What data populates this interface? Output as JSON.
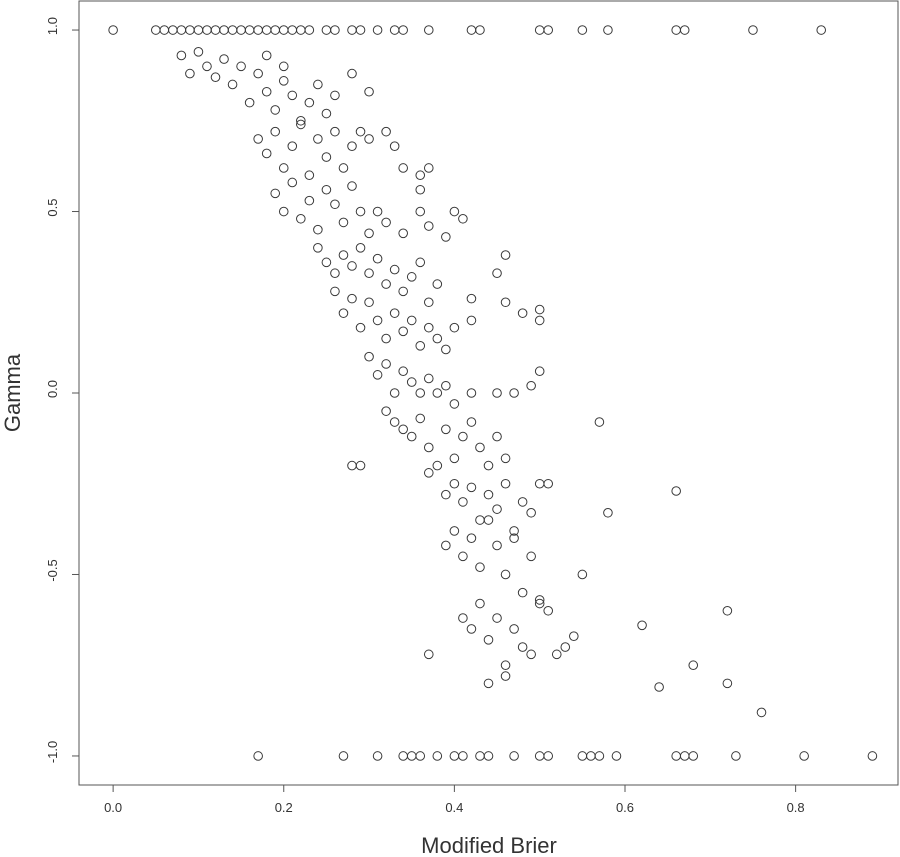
{
  "chart_data": {
    "type": "scatter",
    "title": "",
    "xlabel": "Modified Brier",
    "ylabel": "Gamma",
    "xlim": [
      -0.04,
      0.92
    ],
    "ylim": [
      -1.08,
      1.08
    ],
    "xticks": [
      0.0,
      0.2,
      0.4,
      0.6,
      0.8
    ],
    "xtick_labels": [
      "0.0",
      "0.2",
      "0.4",
      "0.6",
      "0.8"
    ],
    "yticks": [
      1.0,
      0.5,
      0.0,
      -0.5,
      -1.0
    ],
    "ytick_labels": [
      "1.0",
      "0.5",
      "0.0",
      "-0.5",
      "-1.0"
    ],
    "grid": false,
    "marker": "open circle",
    "series": [
      {
        "x": [
          0.0,
          0.05,
          0.06,
          0.07,
          0.08,
          0.09,
          0.1,
          0.11,
          0.12,
          0.13,
          0.14,
          0.15,
          0.16,
          0.17,
          0.18,
          0.19,
          0.2,
          0.21,
          0.22,
          0.23,
          0.25,
          0.26,
          0.28,
          0.29,
          0.31,
          0.33,
          0.34,
          0.37,
          0.42,
          0.43,
          0.5,
          0.51,
          0.55,
          0.58,
          0.66,
          0.67,
          0.75,
          0.83,
          0.08,
          0.09,
          0.1,
          0.11,
          0.12,
          0.13,
          0.14,
          0.15,
          0.16,
          0.17,
          0.18,
          0.18,
          0.19,
          0.2,
          0.2,
          0.21,
          0.22,
          0.23,
          0.24,
          0.25,
          0.26,
          0.28,
          0.3,
          0.17,
          0.18,
          0.19,
          0.2,
          0.21,
          0.22,
          0.23,
          0.24,
          0.25,
          0.26,
          0.27,
          0.28,
          0.29,
          0.3,
          0.32,
          0.33,
          0.34,
          0.36,
          0.36,
          0.37,
          0.19,
          0.2,
          0.21,
          0.22,
          0.23,
          0.24,
          0.25,
          0.26,
          0.27,
          0.28,
          0.29,
          0.3,
          0.31,
          0.32,
          0.34,
          0.36,
          0.37,
          0.39,
          0.4,
          0.41,
          0.24,
          0.25,
          0.26,
          0.27,
          0.28,
          0.29,
          0.3,
          0.31,
          0.32,
          0.33,
          0.34,
          0.35,
          0.36,
          0.37,
          0.38,
          0.42,
          0.45,
          0.46,
          0.48,
          0.5,
          0.26,
          0.27,
          0.28,
          0.29,
          0.3,
          0.31,
          0.32,
          0.33,
          0.34,
          0.35,
          0.36,
          0.37,
          0.38,
          0.39,
          0.4,
          0.42,
          0.46,
          0.5,
          0.5,
          0.3,
          0.31,
          0.32,
          0.33,
          0.34,
          0.35,
          0.36,
          0.37,
          0.38,
          0.39,
          0.4,
          0.42,
          0.45,
          0.47,
          0.49,
          0.32,
          0.33,
          0.34,
          0.35,
          0.36,
          0.37,
          0.38,
          0.39,
          0.4,
          0.41,
          0.42,
          0.43,
          0.44,
          0.45,
          0.46,
          0.57,
          0.58,
          0.28,
          0.29,
          0.37,
          0.39,
          0.4,
          0.41,
          0.42,
          0.43,
          0.44,
          0.45,
          0.46,
          0.47,
          0.48,
          0.49,
          0.5,
          0.51,
          0.66,
          0.39,
          0.4,
          0.41,
          0.42,
          0.43,
          0.44,
          0.45,
          0.46,
          0.47,
          0.48,
          0.49,
          0.5,
          0.55,
          0.37,
          0.41,
          0.42,
          0.43,
          0.44,
          0.45,
          0.46,
          0.47,
          0.48,
          0.49,
          0.5,
          0.51,
          0.52,
          0.53,
          0.54,
          0.62,
          0.72,
          0.44,
          0.46,
          0.64,
          0.68,
          0.72,
          0.76,
          0.17,
          0.27,
          0.31,
          0.34,
          0.35,
          0.36,
          0.38,
          0.4,
          0.41,
          0.43,
          0.44,
          0.47,
          0.5,
          0.51,
          0.55,
          0.56,
          0.57,
          0.59,
          0.66,
          0.67,
          0.68,
          0.73,
          0.81,
          0.89
        ],
        "y": [
          1.0,
          1.0,
          1.0,
          1.0,
          1.0,
          1.0,
          1.0,
          1.0,
          1.0,
          1.0,
          1.0,
          1.0,
          1.0,
          1.0,
          1.0,
          1.0,
          1.0,
          1.0,
          1.0,
          1.0,
          1.0,
          1.0,
          1.0,
          1.0,
          1.0,
          1.0,
          1.0,
          1.0,
          1.0,
          1.0,
          1.0,
          1.0,
          1.0,
          1.0,
          1.0,
          1.0,
          1.0,
          1.0,
          0.93,
          0.88,
          0.94,
          0.9,
          0.87,
          0.92,
          0.85,
          0.9,
          0.8,
          0.88,
          0.83,
          0.93,
          0.78,
          0.86,
          0.9,
          0.82,
          0.75,
          0.8,
          0.85,
          0.77,
          0.82,
          0.88,
          0.83,
          0.7,
          0.66,
          0.72,
          0.62,
          0.68,
          0.74,
          0.6,
          0.7,
          0.65,
          0.72,
          0.62,
          0.68,
          0.72,
          0.7,
          0.72,
          0.68,
          0.62,
          0.6,
          0.56,
          0.62,
          0.55,
          0.5,
          0.58,
          0.48,
          0.53,
          0.45,
          0.56,
          0.52,
          0.47,
          0.57,
          0.5,
          0.44,
          0.5,
          0.47,
          0.44,
          0.5,
          0.46,
          0.43,
          0.5,
          0.48,
          0.4,
          0.36,
          0.33,
          0.38,
          0.35,
          0.4,
          0.33,
          0.37,
          0.3,
          0.34,
          0.28,
          0.32,
          0.36,
          0.25,
          0.3,
          0.26,
          0.33,
          0.38,
          0.22,
          0.23,
          0.28,
          0.22,
          0.26,
          0.18,
          0.25,
          0.2,
          0.15,
          0.22,
          0.17,
          0.2,
          0.13,
          0.18,
          0.15,
          0.12,
          0.18,
          0.2,
          0.25,
          0.2,
          0.06,
          0.1,
          0.05,
          0.08,
          0.0,
          0.06,
          0.03,
          0.0,
          0.04,
          0.0,
          0.02,
          -0.03,
          0.0,
          0.0,
          0.0,
          0.02,
          -0.05,
          -0.08,
          -0.1,
          -0.12,
          -0.07,
          -0.15,
          -0.2,
          -0.1,
          -0.18,
          -0.12,
          -0.08,
          -0.15,
          -0.2,
          -0.12,
          -0.18,
          -0.08,
          -0.33,
          -0.2,
          -0.2,
          -0.22,
          -0.28,
          -0.25,
          -0.3,
          -0.26,
          -0.35,
          -0.28,
          -0.32,
          -0.25,
          -0.38,
          -0.3,
          -0.33,
          -0.25,
          -0.25,
          -0.27,
          -0.42,
          -0.38,
          -0.45,
          -0.4,
          -0.48,
          -0.35,
          -0.42,
          -0.5,
          -0.4,
          -0.55,
          -0.45,
          -0.57,
          -0.5,
          -0.72,
          -0.62,
          -0.65,
          -0.58,
          -0.68,
          -0.62,
          -0.75,
          -0.65,
          -0.7,
          -0.72,
          -0.58,
          -0.6,
          -0.72,
          -0.7,
          -0.67,
          -0.64,
          -0.6,
          -0.8,
          -0.78,
          -0.81,
          -0.75,
          -0.8,
          -0.88,
          -1.0,
          -1.0,
          -1.0,
          -1.0,
          -1.0,
          -1.0,
          -1.0,
          -1.0,
          -1.0,
          -1.0,
          -1.0,
          -1.0,
          -1.0,
          -1.0,
          -1.0,
          -1.0,
          -1.0,
          -1.0,
          -1.0,
          -1.0,
          -1.0,
          -1.0,
          -1.0,
          -1.0
        ]
      }
    ]
  }
}
